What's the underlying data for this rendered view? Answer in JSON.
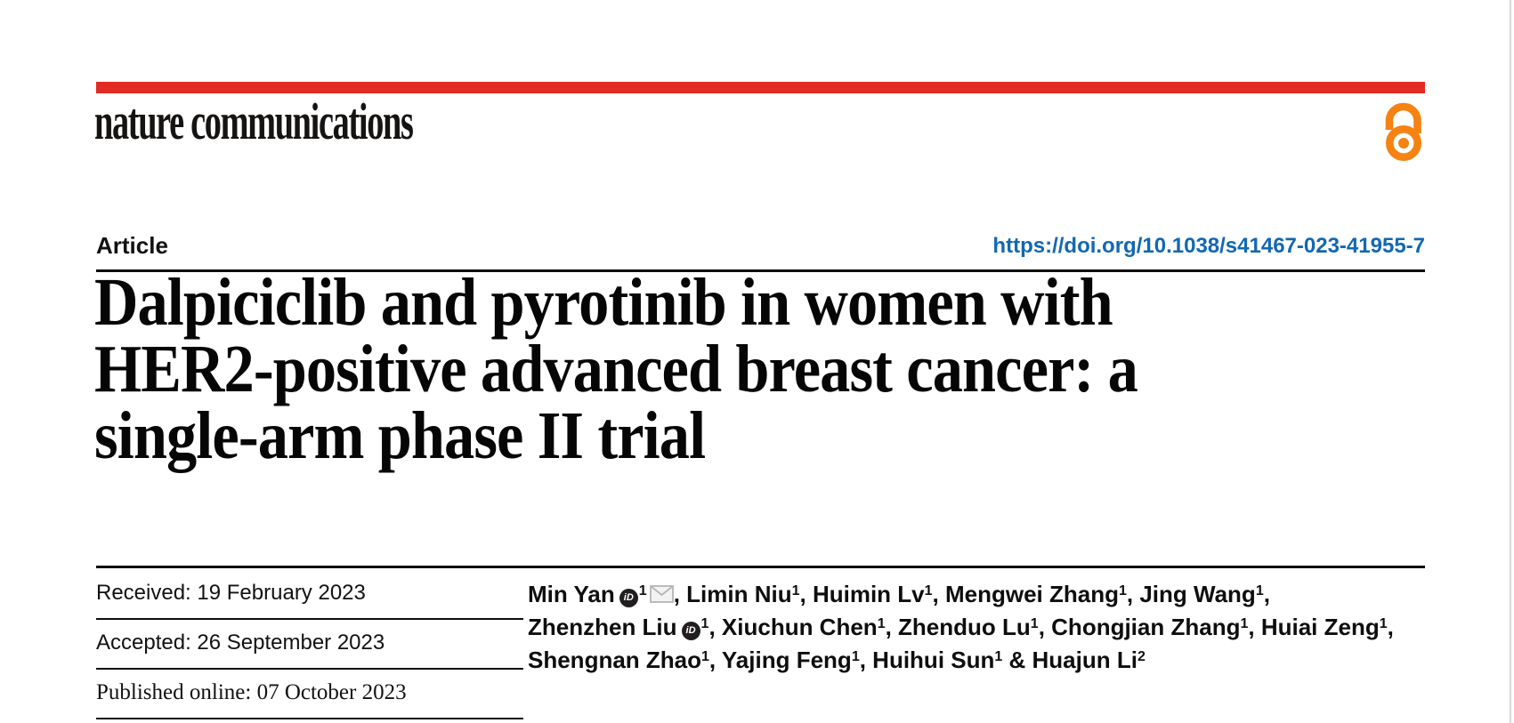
{
  "brand": {
    "logo_text": "nature communications",
    "bar_color": "#e22b24",
    "open_access_color": "#f68212",
    "open_access_icon": "open-padlock"
  },
  "header": {
    "article_label": "Article",
    "doi": "https://doi.org/10.1038/s41467-023-41955-7",
    "doi_color": "#1268b1"
  },
  "title": {
    "line1": "Dalpiciclib and pyrotinib in women with",
    "line2": "HER2-positive advanced breast cancer: a",
    "line3": "single-arm phase II trial"
  },
  "dates": [
    {
      "label": "Received:",
      "value": "19 February 2023"
    },
    {
      "label": "Accepted:",
      "value": "26 September 2023"
    },
    {
      "label": "Published online:",
      "value": "07 October 2023"
    }
  ],
  "authors": {
    "orcid_icon_label": "iD",
    "lines": [
      [
        {
          "name": "Min Yan",
          "orcid": true,
          "sup": "1",
          "mail": true,
          "tail": ", "
        },
        {
          "name": "Limin Niu",
          "sup": "1",
          "tail": ", "
        },
        {
          "name": "Huimin Lv",
          "sup": "1",
          "tail": ", "
        },
        {
          "name": "Mengwei Zhang",
          "sup": "1",
          "tail": ", "
        },
        {
          "name": "Jing Wang",
          "sup": "1",
          "tail": ","
        }
      ],
      [
        {
          "name": "Zhenzhen Liu",
          "orcid": true,
          "sup": "1",
          "tail": ", "
        },
        {
          "name": "Xiuchun Chen",
          "sup": "1",
          "tail": ", "
        },
        {
          "name": "Zhenduo Lu",
          "sup": "1",
          "tail": ", "
        },
        {
          "name": "Chongjian Zhang",
          "sup": "1",
          "tail": ", "
        },
        {
          "name": "Huiai Zeng",
          "sup": "1",
          "tail": ","
        }
      ],
      [
        {
          "name": "Shengnan Zhao",
          "sup": "1",
          "tail": ", "
        },
        {
          "name": "Yajing Feng",
          "sup": "1",
          "tail": ", "
        },
        {
          "name": "Huihui Sun",
          "sup": "1",
          "tail": " & "
        },
        {
          "name": "Huajun Li",
          "sup": "2",
          "tail": ""
        }
      ]
    ]
  }
}
